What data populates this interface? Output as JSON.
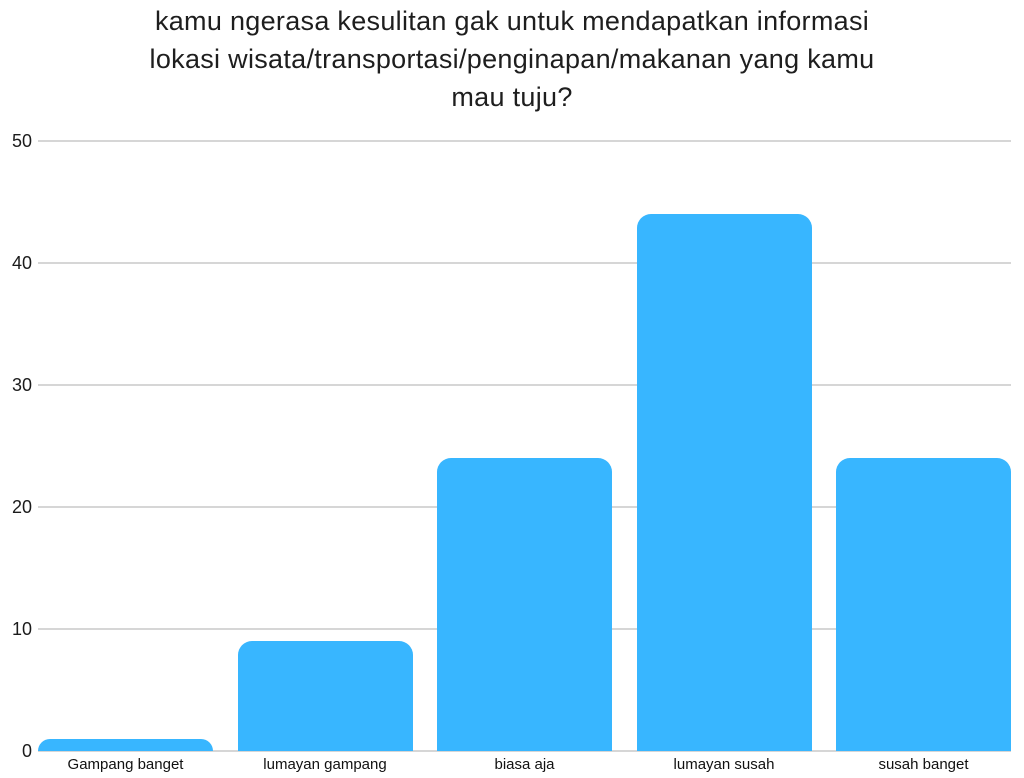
{
  "title": {
    "lines": [
      "kamu ngerasa kesulitan gak untuk mendapatkan informasi",
      "lokasi wisata/transportasi/penginapan/makanan yang kamu",
      "mau tuju?"
    ]
  },
  "colors": {
    "bar": "#38B6FF",
    "gridline": "#D6D6D6",
    "title_text": "#1E1E1E",
    "tick_text": "#1B1B1B"
  },
  "chart_data": {
    "type": "bar",
    "title": "kamu ngerasa kesulitan gak untuk mendapatkan informasi lokasi wisata/transportasi/penginapan/makanan yang kamu mau tuju?",
    "categories": [
      "Gampang banget",
      "lumayan gampang",
      "biasa aja",
      "lumayan susah",
      "susah banget"
    ],
    "values": [
      1,
      9,
      24,
      44,
      24
    ],
    "xlabel": "",
    "ylabel": "",
    "ylim": [
      0,
      50
    ],
    "yticks": [
      0,
      10,
      20,
      30,
      40,
      50
    ],
    "grid": true,
    "legend": false,
    "bar_corner_radius": 14
  }
}
